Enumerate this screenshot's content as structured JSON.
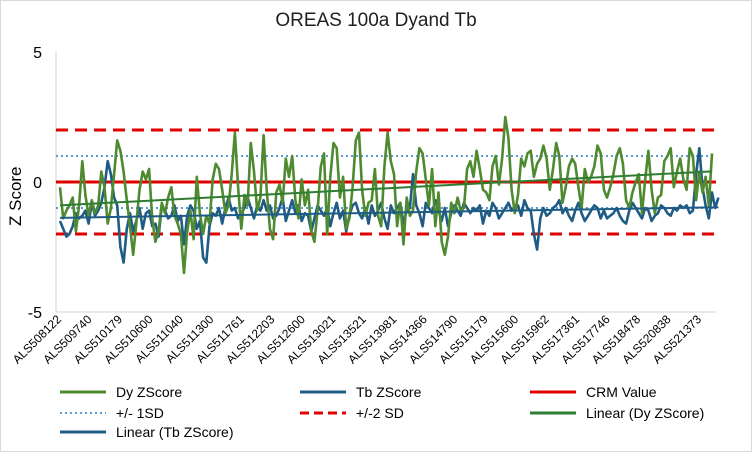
{
  "chart_data": {
    "type": "line",
    "title": "OREAS 100a Dyand Tb",
    "ylabel": "Z Score",
    "xlabel": "",
    "ylim": [
      -5,
      5
    ],
    "yticks": [
      5,
      0,
      -5
    ],
    "grid": false,
    "legend_position": "bottom",
    "x_tick_labels": [
      "ALS508122",
      "ALS509740",
      "ALS510179",
      "ALS510600",
      "ALS511040",
      "ALS511300",
      "ALS511761",
      "ALS512203",
      "ALS512600",
      "ALS513021",
      "ALS513521",
      "ALS513981",
      "ALS514366",
      "ALS514790",
      "ALS515179",
      "ALS515600",
      "ALS515962",
      "ALS517361",
      "ALS517746",
      "ALS518478",
      "ALS520838",
      "ALS521373"
    ],
    "series": [
      {
        "name": "Dy ZScore",
        "color": "#4e8a2f",
        "style": "solid",
        "values": [
          -0.2,
          -1.4,
          -1.1,
          -0.9,
          -0.6,
          -1.9,
          -0.9,
          0.8,
          -0.5,
          -1.3,
          -0.7,
          -1.2,
          -0.9,
          0.4,
          -0.2,
          -1.6,
          -1.0,
          0.3,
          1.6,
          1.2,
          0.4,
          -0.7,
          -1.7,
          -2.8,
          -1.6,
          -0.3,
          0.4,
          0.1,
          0.5,
          -1.4,
          -2.3,
          -1.9,
          -0.8,
          -1.2,
          -0.6,
          -0.2,
          -1.3,
          -1.6,
          -2.0,
          -3.5,
          -1.9,
          -1.1,
          -2.2,
          0.2,
          -1.2,
          -2.0,
          -1.3,
          -1.6,
          0.1,
          0.7,
          0.5,
          -0.3,
          -1.2,
          -0.9,
          0.3,
          1.9,
          -0.2,
          -1.8,
          -0.5,
          -0.9,
          1.5,
          0.4,
          -1.1,
          -0.6,
          1.8,
          -0.3,
          -1.8,
          -2.2,
          -0.4,
          -0.1,
          -0.8,
          0.9,
          0.2,
          1.0,
          -0.7,
          -1.4,
          0.1,
          -0.9,
          -0.3,
          -1.9,
          -2.3,
          -1.1,
          0.6,
          1.1,
          -2.0,
          0.2,
          1.5,
          1.3,
          -0.6,
          0.2,
          -1.8,
          -1.4,
          -0.2,
          1.6,
          1.9,
          -0.3,
          -1.3,
          -0.8,
          -0.7,
          0.5,
          -1.3,
          -1.7,
          0.6,
          1.9,
          0.8,
          0.3,
          -1.7,
          -0.8,
          -2.4,
          -0.6,
          -1.3,
          -1.1,
          0.4,
          1.3,
          1.1,
          0.1,
          -0.9,
          0.5,
          -1.7,
          -0.4,
          -2.3,
          -2.8,
          -2.1,
          -0.8,
          -1.2,
          -0.6,
          -1.1,
          -1.0,
          0.5,
          0.8,
          0.2,
          1.2,
          0.5,
          -0.3,
          -0.4,
          -0.7,
          0.6,
          1.0,
          -0.1,
          0.9,
          2.5,
          1.7,
          -0.3,
          -1.2,
          -0.5,
          0.9,
          0.6,
          1.1,
          1.2,
          0.2,
          0.7,
          0.9,
          1.4,
          0.9,
          -0.3,
          0.5,
          1.5,
          1.0,
          -0.8,
          -0.2,
          0.6,
          0.9,
          0.7,
          -0.2,
          -1.0,
          0.5,
          0.0,
          0.2,
          0.6,
          1.4,
          1.1,
          -0.3,
          -0.6,
          -0.2,
          0.3,
          1.0,
          1.3,
          0.7,
          -0.7,
          -1.0,
          -0.4,
          0.0,
          0.3,
          -1.2,
          0.1,
          1.2,
          -0.3,
          -1.2,
          -0.6,
          -0.5,
          0.8,
          1.0,
          1.3,
          -0.2,
          0.4,
          0.9,
          0.1,
          -0.3,
          1.3,
          1.0,
          -0.7,
          0.4,
          -0.4,
          0.2,
          -0.9,
          1.1
        ]
      },
      {
        "name": "Tb ZScore",
        "color": "#1f5c85",
        "style": "solid",
        "values": [
          -1.5,
          -1.8,
          -2.1,
          -2.0,
          -1.7,
          -1.2,
          -1.4,
          -1.3,
          -1.1,
          -1.6,
          -0.8,
          -1.3,
          -1.1,
          -0.8,
          -0.2,
          0.8,
          0.3,
          -0.6,
          -0.9,
          -2.5,
          -3.1,
          -1.8,
          -1.2,
          -1.9,
          -1.5,
          -1.0,
          -1.8,
          -1.2,
          -1.1,
          -1.7,
          -1.6,
          -2.1,
          -0.9,
          -1.1,
          -1.4,
          -1.3,
          -0.9,
          -1.5,
          -1.3,
          -2.4,
          -1.3,
          -0.9,
          -1.1,
          -1.8,
          -1.5,
          -2.9,
          -3.1,
          -1.7,
          -1.2,
          -1.3,
          -1.0,
          -1.6,
          -1.0,
          -0.6,
          -1.1,
          -1.0,
          -1.4,
          -1.2,
          -1.0,
          -0.6,
          -1.0,
          -1.4,
          -0.9,
          -1.1,
          -0.7,
          -1.1,
          -0.9,
          -1.4,
          -1.3,
          -1.0,
          -0.6,
          -1.5,
          -1.1,
          -0.7,
          -1.2,
          -0.9,
          -1.5,
          -1.2,
          -1.3,
          -1.9,
          -1.4,
          -0.9,
          -1.1,
          -1.3,
          -1.0,
          -1.7,
          -1.2,
          -0.8,
          -1.4,
          -1.1,
          -1.9,
          -1.3,
          -0.9,
          -0.8,
          -1.2,
          -1.4,
          -1.0,
          -1.6,
          -0.9,
          -1.3,
          -1.1,
          -0.8,
          -1.4,
          -1.8,
          -0.9,
          -1.2,
          -1.0,
          -0.8,
          -1.6,
          -1.1,
          -1.0,
          0.3,
          -0.9,
          -1.2,
          -1.7,
          -0.8,
          -1.0,
          -1.2,
          -0.7,
          -1.1,
          -1.5,
          -1.0,
          -1.7,
          -1.2,
          -0.9,
          -1.1,
          -1.3,
          -0.8,
          -1.0,
          -1.2,
          -1.0,
          -1.1,
          -0.9,
          -1.6,
          -1.1,
          -1.3,
          -0.8,
          -1.0,
          -1.4,
          -1.2,
          -1.0,
          -0.8,
          -1.1,
          -1.0,
          -0.9,
          -1.3,
          -0.7,
          -1.0,
          -1.1,
          -2.0,
          -2.6,
          -1.4,
          -1.0,
          -1.3,
          -1.2,
          -1.0,
          -0.9,
          -0.7,
          -1.2,
          -1.0,
          -1.3,
          -1.5,
          -1.1,
          -0.8,
          -1.2,
          -1.5,
          -1.3,
          -1.1,
          -0.9,
          -1.0,
          -1.4,
          -1.1,
          -1.4,
          -1.3,
          -1.2,
          -1.0,
          -1.3,
          -1.5,
          -1.6,
          -1.1,
          -0.8,
          -1.0,
          -1.2,
          -1.4,
          -1.0,
          -1.1,
          -1.5,
          -1.3,
          -1.2,
          -0.9,
          -1.0,
          -1.2,
          -1.3,
          -1.0,
          -1.1,
          -0.9,
          -1.0,
          -0.9,
          -1.2,
          -1.1,
          0.3,
          1.3,
          -0.2,
          -0.9,
          -1.4,
          -0.4,
          -1.0,
          -0.6
        ]
      },
      {
        "name": "CRM Value",
        "color": "#e00000",
        "style": "solid",
        "constant": 0
      },
      {
        "name": "+/- 1SD",
        "color": "#5b9bd5",
        "style": "dotted",
        "constants": [
          1,
          -1
        ]
      },
      {
        "name": "+/-2 SD",
        "color": "#e00000",
        "style": "dashed",
        "constants": [
          2,
          -2
        ]
      },
      {
        "name": "Linear (Dy ZScore)",
        "color": "#2e7d32",
        "style": "solid",
        "trend_of": "Dy ZScore"
      },
      {
        "name": "Linear (Tb ZScore)",
        "color": "#1f5c85",
        "style": "solid",
        "trend_of": "Tb ZScore"
      }
    ]
  }
}
